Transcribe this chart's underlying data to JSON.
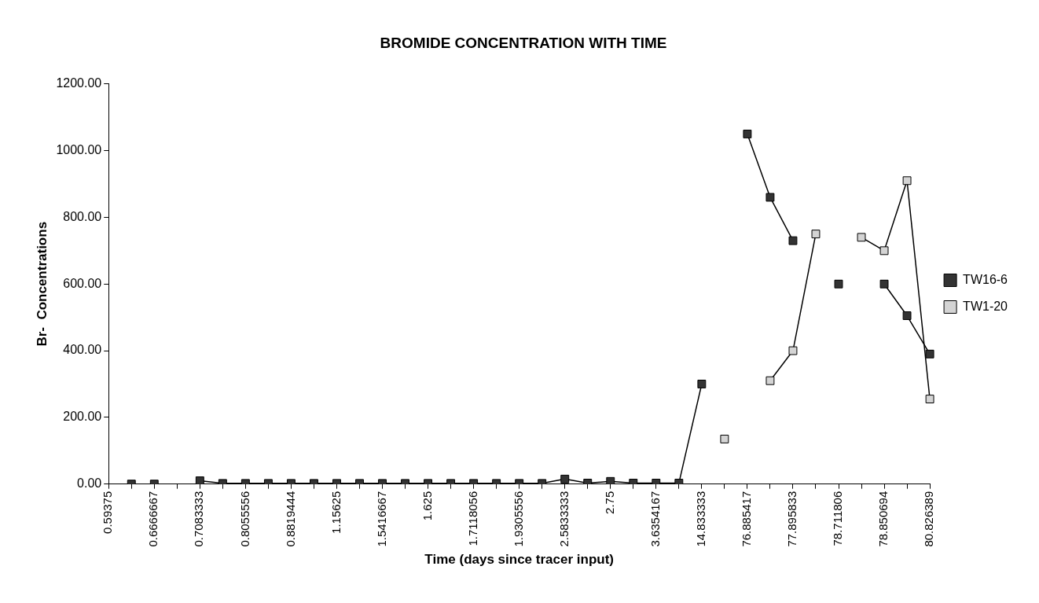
{
  "chart_data": {
    "type": "line",
    "title": "BROMIDE CONCENTRATION WITH TIME",
    "xlabel": "Time (days since tracer input)",
    "ylabel": "Br-  Concentrations",
    "categories": [
      "0.59375",
      null,
      "0.6666667",
      null,
      "0.7083333",
      null,
      "0.8055556",
      null,
      "0.8819444",
      null,
      "1.15625",
      null,
      "1.5416667",
      null,
      "1.625",
      null,
      "1.7118056",
      null,
      "1.9305556",
      null,
      "2.5833333",
      null,
      "2.75",
      null,
      "3.6354167",
      null,
      "14.833333",
      null,
      "76.885417",
      null,
      "77.895833",
      null,
      "78.711806",
      null,
      "78.850694",
      null,
      "80.826389"
    ],
    "series": [
      {
        "name": "TW16-6",
        "color": "#333333",
        "values": [
          null,
          0,
          0,
          null,
          10,
          2,
          2,
          2,
          2,
          2,
          2,
          2,
          2,
          2,
          2,
          2,
          2,
          2,
          2,
          2,
          15,
          3,
          8,
          3,
          3,
          3,
          300,
          null,
          1050,
          860,
          730,
          null,
          600,
          null,
          600,
          505,
          390
        ]
      },
      {
        "name": "TW1-20",
        "color": "#d4d4d4",
        "values": [
          null,
          null,
          null,
          null,
          null,
          null,
          null,
          null,
          null,
          null,
          null,
          null,
          null,
          null,
          null,
          null,
          null,
          null,
          null,
          null,
          null,
          null,
          null,
          null,
          null,
          null,
          null,
          135,
          null,
          310,
          400,
          750,
          null,
          740,
          700,
          910,
          255
        ]
      }
    ],
    "ylim": [
      0,
      1200
    ],
    "yticks": [
      {
        "value": 0,
        "label": "0.00"
      },
      {
        "value": 200,
        "label": "200.00"
      },
      {
        "value": 400,
        "label": "400.00"
      },
      {
        "value": 600,
        "label": "600.00"
      },
      {
        "value": 800,
        "label": "800.00"
      },
      {
        "value": 1000,
        "label": "1000.00"
      },
      {
        "value": 1200,
        "label": "1200.00"
      }
    ],
    "grid": false,
    "legend": "right",
    "marker": "square",
    "line_style": "solid"
  }
}
